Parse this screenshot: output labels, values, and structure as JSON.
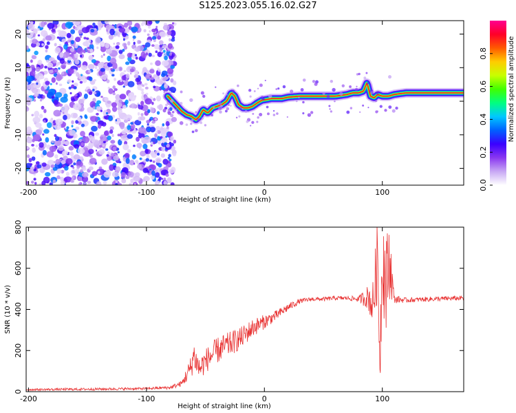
{
  "title": "S125.2023.055.16.02.G27",
  "chart_data": [
    {
      "type": "heatmap",
      "xlabel": "Height of straight line (km)",
      "ylabel": "Frequency (Hz)",
      "xlim": [
        -202,
        169
      ],
      "ylim": [
        -25,
        24
      ],
      "xticks": [
        -200,
        -100,
        0,
        100
      ],
      "yticks": [
        -20,
        -10,
        0,
        10,
        20
      ],
      "colorbar": {
        "label": "Normalized spectral amplitude",
        "range": [
          0,
          1
        ],
        "ticks": [
          0.0,
          0.2,
          0.4,
          0.6,
          0.8
        ],
        "colors": [
          "#ffffff",
          "#c8a8f4",
          "#8a38f0",
          "#3a00ff",
          "#0060ff",
          "#00c8ff",
          "#00ff80",
          "#40ff00",
          "#c8ff00",
          "#ffcc00",
          "#ff5a00",
          "#ff0028",
          "#ff0090"
        ]
      },
      "noise_region_x": [
        -202,
        -80
      ],
      "ridge": {
        "x": [
          -82,
          -78,
          -74,
          -70,
          -66,
          -62,
          -58,
          -55,
          -52,
          -48,
          -44,
          -40,
          -36,
          -32,
          -28,
          -25,
          -22,
          -18,
          -14,
          -10,
          -6,
          -2,
          2,
          6,
          10,
          15,
          20,
          30,
          40,
          50,
          60,
          70,
          75,
          80,
          84,
          87,
          90,
          93,
          96,
          100,
          105,
          110,
          120,
          140,
          169
        ],
        "y": [
          1.5,
          0,
          -1.5,
          -3,
          -4,
          -4.5,
          -5.5,
          -4.5,
          -2.5,
          -3.5,
          -2,
          -1.5,
          -1,
          0,
          2.5,
          1.5,
          -1,
          -2,
          -2,
          -1.5,
          -0.5,
          0.3,
          0.5,
          0.8,
          0.8,
          0.8,
          1.2,
          1.5,
          1.5,
          1.5,
          1.5,
          2,
          2.5,
          2.5,
          3,
          5.5,
          1.5,
          1,
          2,
          1.5,
          1.5,
          2,
          2.5,
          2.5,
          2.5
        ],
        "peak_amplitude": 0.9
      }
    },
    {
      "type": "line",
      "xlabel": "Height of straight line (km)",
      "ylabel": "SNR (10 * v/v)",
      "xlim": [
        -202,
        169
      ],
      "ylim": [
        0,
        800
      ],
      "xticks": [
        -200,
        -100,
        0,
        100
      ],
      "yticks": [
        0,
        200,
        400,
        600,
        800
      ],
      "line_color": "#e83030",
      "series": [
        {
          "x": [
            -202,
            -150,
            -100,
            -80,
            -70,
            -62,
            -60,
            -55,
            -50,
            -40,
            -30,
            -20,
            -10,
            0,
            10,
            20,
            30,
            40,
            50,
            60,
            70,
            80,
            88,
            92,
            96,
            98,
            100,
            103,
            106,
            110,
            120,
            140,
            169
          ],
          "y": [
            10,
            12,
            15,
            20,
            40,
            120,
            180,
            110,
            150,
            200,
            230,
            260,
            310,
            340,
            370,
            410,
            440,
            450,
            450,
            455,
            455,
            450,
            460,
            420,
            650,
            150,
            700,
            500,
            650,
            450,
            445,
            450,
            455
          ],
          "variability": [
            5,
            6,
            6,
            8,
            15,
            60,
            70,
            60,
            60,
            65,
            60,
            55,
            45,
            35,
            25,
            20,
            12,
            10,
            10,
            10,
            10,
            15,
            60,
            120,
            200,
            150,
            250,
            250,
            200,
            20,
            12,
            12,
            12
          ]
        }
      ]
    }
  ]
}
